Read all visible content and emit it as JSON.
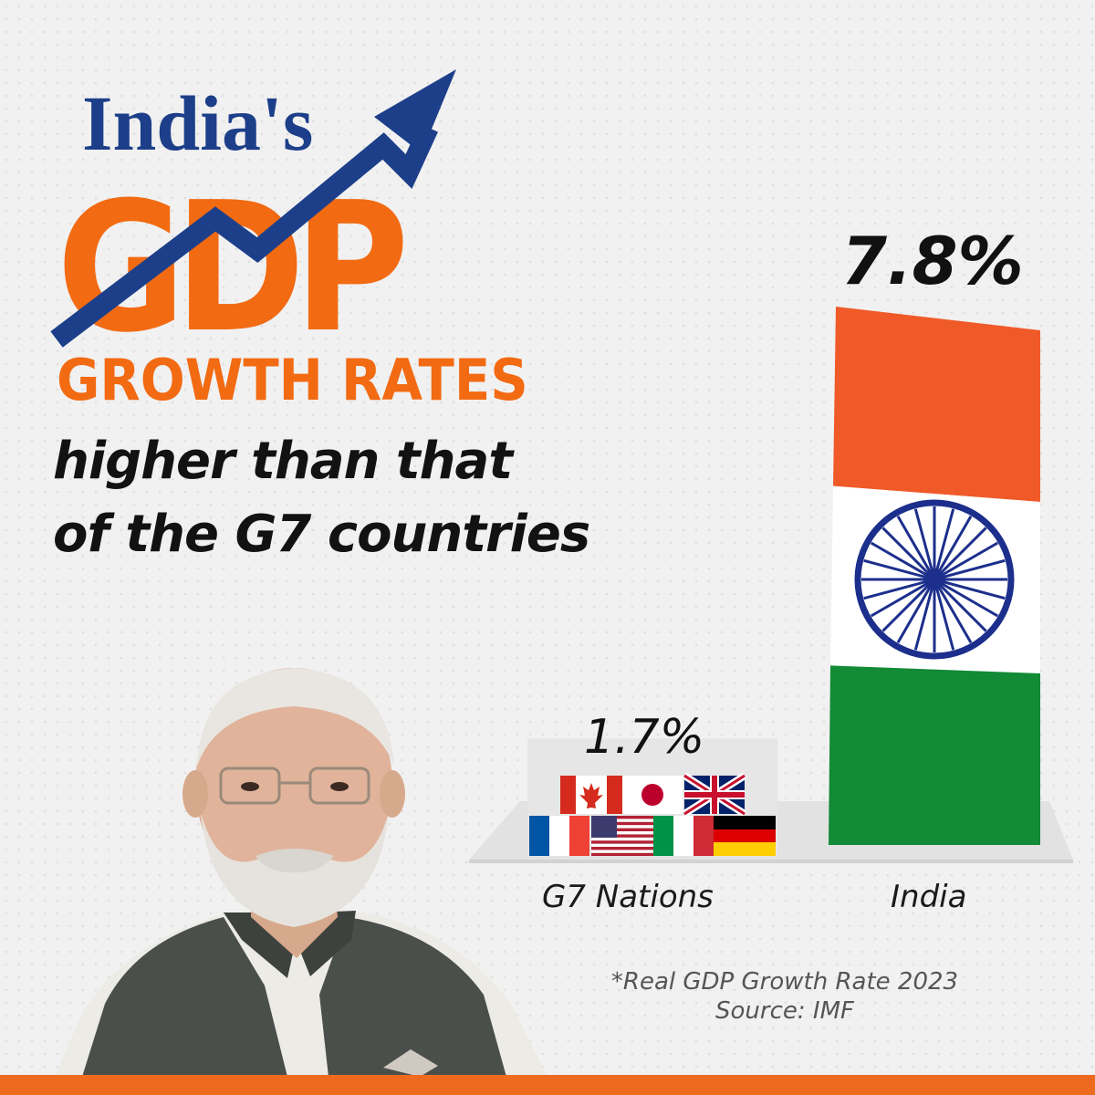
{
  "headline": {
    "line1": "India's",
    "line2": "GDP",
    "line3": "GROWTH RATES"
  },
  "subtitle": {
    "line1": "higher than that",
    "line2": "of the G7 countries"
  },
  "colors": {
    "navy": "#1d3f8a",
    "orange": "#f26a12",
    "saffron": "#f05a28",
    "green": "#138a36",
    "chakra": "#1c2f8c"
  },
  "chart_data": {
    "type": "bar",
    "categories": [
      "G7 Nations",
      "India"
    ],
    "values": [
      1.7,
      7.8
    ],
    "value_labels": [
      "1.7%",
      "7.8%"
    ],
    "ylabel": "",
    "xlabel": ""
  },
  "footnote": {
    "line1": "*Real GDP Growth Rate 2023",
    "line2": "Source: IMF"
  },
  "icons": {
    "flags": [
      "canada-flag-icon",
      "japan-flag-icon",
      "uk-flag-icon",
      "france-flag-icon",
      "usa-flag-icon",
      "italy-flag-icon",
      "germany-flag-icon"
    ],
    "trend": "trend-arrow-icon",
    "wheel": "ashoka-chakra-icon"
  }
}
